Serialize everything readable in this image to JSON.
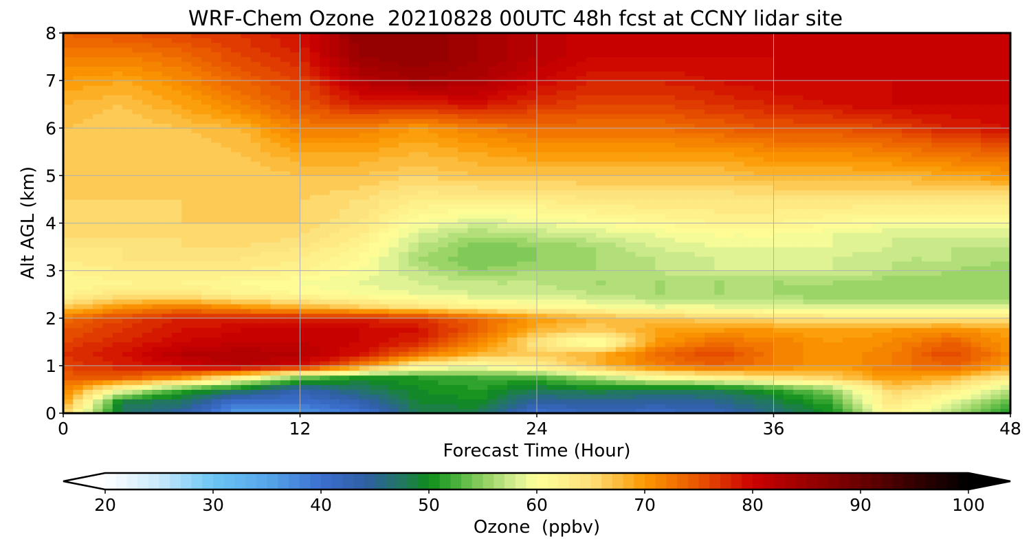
{
  "chart_data": {
    "type": "heatmap",
    "title": "WRF-Chem Ozone  20210828 00UTC 48h fcst at CCNY lidar site",
    "xlabel": "Forecast Time (Hour)",
    "ylabel": "Alt AGL (km)",
    "xlim": [
      0,
      48
    ],
    "ylim": [
      0,
      8
    ],
    "x_ticks": [
      0,
      12,
      24,
      36,
      48
    ],
    "y_ticks": [
      0,
      1,
      2,
      3,
      4,
      5,
      6,
      7,
      8
    ],
    "grid": true,
    "x": [
      0,
      3,
      6,
      9,
      12,
      15,
      18,
      21,
      24,
      27,
      30,
      33,
      36,
      39,
      42,
      45,
      48
    ],
    "y": [
      0,
      0.25,
      0.5,
      0.75,
      1,
      1.25,
      1.5,
      1.75,
      2,
      2.25,
      2.5,
      2.75,
      3,
      3.25,
      3.5,
      3.75,
      4,
      4.5,
      5,
      5.5,
      6,
      6.5,
      7,
      7.5,
      8
    ],
    "z": [
      [
        66,
        47,
        44,
        35,
        36,
        39,
        48,
        48,
        40,
        42,
        41,
        42,
        46,
        50,
        62,
        56,
        50
      ],
      [
        70,
        49,
        47,
        40,
        40,
        43,
        49,
        50,
        44,
        45,
        44,
        45,
        48,
        52,
        64,
        59,
        53
      ],
      [
        72,
        60,
        52,
        48,
        43,
        47,
        50,
        51,
        48,
        49,
        48,
        48,
        51,
        55,
        66,
        63,
        57
      ],
      [
        74,
        74,
        70,
        62,
        54,
        50,
        51,
        52,
        52,
        56,
        60,
        62,
        64,
        66,
        70,
        68,
        63
      ],
      [
        76,
        78,
        80,
        82,
        80,
        72,
        62,
        60,
        63,
        68,
        72,
        74,
        72,
        70,
        72,
        74,
        70
      ],
      [
        77,
        79,
        82,
        83,
        82,
        79,
        73,
        68,
        66,
        68,
        73,
        76,
        72,
        70,
        72,
        76,
        71
      ],
      [
        76,
        78,
        80,
        81,
        81,
        80,
        78,
        72,
        64,
        58,
        70,
        73,
        72,
        70,
        71,
        74,
        70
      ],
      [
        75,
        77,
        79,
        80,
        80,
        80,
        79,
        74,
        68,
        66,
        69,
        70,
        70,
        69,
        70,
        71,
        69
      ],
      [
        73,
        76,
        78,
        78,
        78,
        78,
        77,
        74,
        70,
        68,
        67,
        66,
        65,
        64,
        64,
        64,
        64
      ],
      [
        66,
        70,
        72,
        70,
        68,
        66,
        64,
        62,
        61,
        60,
        59,
        59,
        58,
        58,
        58,
        58,
        58
      ],
      [
        62,
        64,
        64,
        62,
        61,
        60,
        59,
        58,
        58,
        57,
        56,
        56,
        56,
        55,
        55,
        55,
        55
      ],
      [
        61,
        62,
        62,
        61,
        60,
        59,
        58,
        57,
        57,
        56,
        56,
        56,
        56,
        56,
        55,
        55,
        55
      ],
      [
        62,
        63,
        63,
        63,
        62,
        60,
        57,
        55,
        56,
        56,
        57,
        58,
        58,
        58,
        57,
        56,
        55
      ],
      [
        63,
        64,
        64,
        64,
        63,
        61,
        56,
        54,
        55,
        56,
        57,
        58,
        58,
        58,
        57,
        57,
        56
      ],
      [
        64,
        64,
        65,
        65,
        64,
        62,
        57,
        54,
        55,
        56,
        58,
        59,
        59,
        59,
        58,
        57,
        57
      ],
      [
        65,
        65,
        65,
        66,
        65,
        63,
        58,
        56,
        57,
        58,
        59,
        60,
        60,
        59,
        58,
        58,
        58
      ],
      [
        65,
        65,
        66,
        66,
        66,
        64,
        60,
        58,
        59,
        60,
        61,
        62,
        62,
        61,
        60,
        60,
        60
      ],
      [
        66,
        66,
        66,
        66,
        66,
        65,
        63,
        63,
        63,
        64,
        64,
        64,
        64,
        64,
        64,
        64,
        64
      ],
      [
        66,
        66,
        66,
        66,
        67,
        67,
        66,
        67,
        67,
        67,
        67,
        67,
        68,
        68,
        68,
        69,
        70
      ],
      [
        67,
        66,
        66,
        67,
        69,
        69,
        68,
        69,
        70,
        70,
        70,
        70,
        71,
        71,
        72,
        73,
        74
      ],
      [
        67,
        66,
        67,
        68,
        72,
        72,
        70,
        72,
        73,
        73,
        73,
        74,
        75,
        75,
        76,
        78,
        79
      ],
      [
        68,
        67,
        69,
        72,
        75,
        78,
        78,
        79,
        77,
        76,
        76,
        77,
        78,
        79,
        80,
        80,
        80
      ],
      [
        70,
        69,
        71,
        74,
        76,
        82,
        84,
        83,
        80,
        78,
        78,
        79,
        80,
        80,
        80,
        80,
        80
      ],
      [
        72,
        72,
        73,
        76,
        78,
        85,
        86,
        84,
        82,
        80,
        80,
        80,
        80,
        80,
        80,
        80,
        80
      ],
      [
        74,
        75,
        76,
        77,
        79,
        86,
        86,
        84,
        82,
        80,
        80,
        80,
        80,
        80,
        80,
        80,
        80
      ]
    ],
    "colorbar": {
      "label": "Ozone  (ppbv)",
      "min": 20,
      "max": 100,
      "step": 1,
      "extend": "both",
      "ticks": [
        20,
        30,
        40,
        50,
        60,
        70,
        80,
        90,
        100
      ],
      "color_stops": [
        [
          20,
          "#ffffff"
        ],
        [
          25,
          "#c7e9fb"
        ],
        [
          30,
          "#6cc5f4"
        ],
        [
          35,
          "#56a6ea"
        ],
        [
          40,
          "#3c6fcf"
        ],
        [
          44,
          "#2f5fa6"
        ],
        [
          48,
          "#1f7a55"
        ],
        [
          50,
          "#0f8c1a"
        ],
        [
          52,
          "#3aaa33"
        ],
        [
          55,
          "#8fd060"
        ],
        [
          58,
          "#d4ee92"
        ],
        [
          60,
          "#ffff99"
        ],
        [
          65,
          "#fde07a"
        ],
        [
          70,
          "#fb9800"
        ],
        [
          75,
          "#e85400"
        ],
        [
          80,
          "#cc0000"
        ],
        [
          85,
          "#9a0000"
        ],
        [
          90,
          "#6a0000"
        ],
        [
          95,
          "#340000"
        ],
        [
          100,
          "#000000"
        ]
      ]
    }
  }
}
